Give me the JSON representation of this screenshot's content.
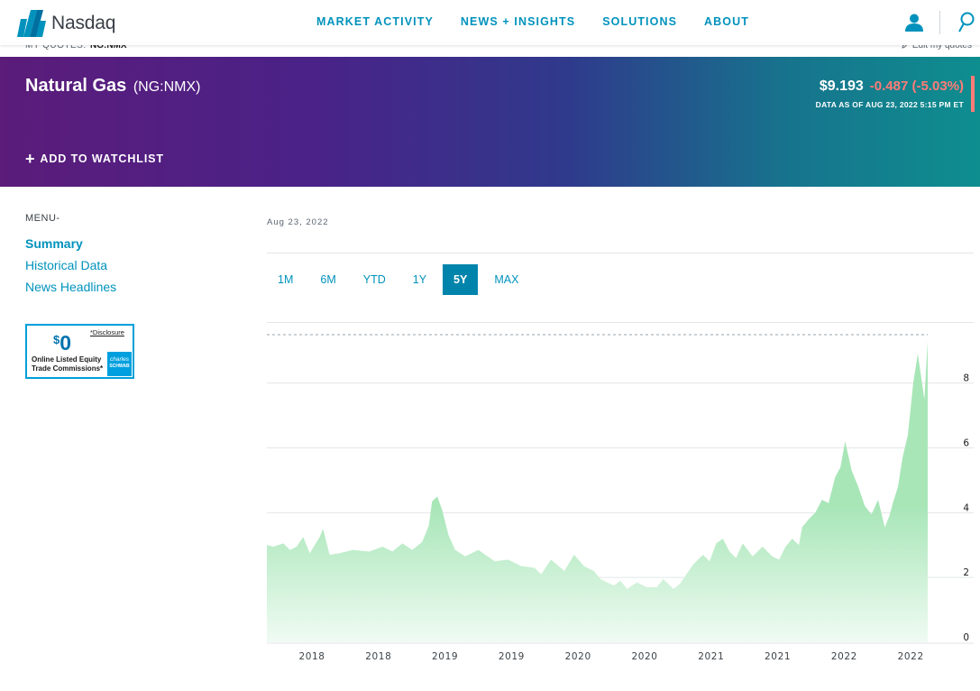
{
  "brand": {
    "name": "Nasdaq"
  },
  "nav": {
    "items": [
      "MARKET ACTIVITY",
      "NEWS + INSIGHTS",
      "SOLUTIONS",
      "ABOUT"
    ]
  },
  "quotes": {
    "label": "MY QUOTES:",
    "symbol": "NG:NMX",
    "edit_label": "Edit my quotes"
  },
  "header": {
    "title": "Natural Gas",
    "symbol": "(NG:NMX)",
    "price": "$9.193",
    "change": "-0.487 (-5.03%)",
    "as_of": "DATA AS OF AUG 23, 2022 5:15 PM ET",
    "watchlist_label": "ADD TO WATCHLIST"
  },
  "sidebar": {
    "menu_label": "MENU-",
    "items": [
      {
        "label": "Summary",
        "active": true
      },
      {
        "label": "Historical Data",
        "active": false
      },
      {
        "label": "News Headlines",
        "active": false
      }
    ]
  },
  "ad": {
    "amount": "0",
    "currency": "$",
    "disclosure": "*Disclosure",
    "line1": "Online Listed Equity",
    "line2": "Trade Commissions*",
    "brand_line1": "charles",
    "brand_line2": "SCHWAB"
  },
  "chart": {
    "date_label": "Aug 23, 2022",
    "ranges": [
      "1M",
      "6M",
      "YTD",
      "1Y",
      "5Y",
      "MAX"
    ],
    "active_range": "5Y"
  },
  "colors": {
    "accent": "#0092bc",
    "active_tab": "#0084ab",
    "negative_change": "#ff7b77",
    "area_fill": "#a8e6b8",
    "area_fill_fade": "#f0fbf3"
  },
  "chart_data": {
    "type": "area",
    "x_tick_labels": [
      "2018",
      "2018",
      "2019",
      "2019",
      "2020",
      "2020",
      "2021",
      "2021",
      "2022",
      "2022"
    ],
    "ylim": [
      0,
      9.8
    ],
    "y_ticks": [
      0,
      2,
      4,
      6,
      8
    ],
    "grid": true,
    "x": [
      0,
      0.01,
      0.025,
      0.035,
      0.045,
      0.055,
      0.065,
      0.08,
      0.085,
      0.095,
      0.11,
      0.13,
      0.155,
      0.175,
      0.19,
      0.205,
      0.22,
      0.235,
      0.245,
      0.25,
      0.258,
      0.265,
      0.275,
      0.285,
      0.3,
      0.32,
      0.345,
      0.365,
      0.385,
      0.405,
      0.415,
      0.43,
      0.45,
      0.465,
      0.48,
      0.495,
      0.505,
      0.515,
      0.525,
      0.535,
      0.545,
      0.56,
      0.575,
      0.59,
      0.6,
      0.615,
      0.625,
      0.645,
      0.66,
      0.67,
      0.68,
      0.69,
      0.7,
      0.71,
      0.72,
      0.735,
      0.75,
      0.765,
      0.775,
      0.785,
      0.795,
      0.805,
      0.81,
      0.82,
      0.83,
      0.84,
      0.85,
      0.86,
      0.868,
      0.875,
      0.885,
      0.895,
      0.905,
      0.915,
      0.925,
      0.935,
      0.942,
      0.948,
      0.955,
      0.962,
      0.97,
      0.978,
      0.985,
      0.99,
      0.995,
      1
    ],
    "values": [
      3.0,
      2.95,
      3.05,
      2.85,
      2.95,
      3.25,
      2.75,
      3.25,
      3.5,
      2.7,
      2.75,
      2.85,
      2.8,
      2.95,
      2.8,
      3.05,
      2.85,
      3.1,
      3.6,
      4.35,
      4.5,
      4.1,
      3.3,
      2.85,
      2.65,
      2.85,
      2.5,
      2.55,
      2.35,
      2.3,
      2.1,
      2.55,
      2.2,
      2.7,
      2.35,
      2.2,
      1.95,
      1.85,
      1.75,
      1.9,
      1.65,
      1.85,
      1.7,
      1.7,
      1.95,
      1.65,
      1.8,
      2.4,
      2.7,
      2.5,
      3.05,
      3.2,
      2.8,
      2.6,
      3.05,
      2.65,
      2.95,
      2.65,
      2.55,
      2.95,
      3.2,
      3.0,
      3.55,
      3.8,
      4.0,
      4.4,
      4.3,
      5.1,
      5.4,
      6.2,
      5.3,
      4.8,
      4.2,
      3.95,
      4.4,
      3.55,
      3.9,
      4.35,
      4.8,
      5.7,
      6.4,
      8.0,
      8.9,
      8.2,
      7.5,
      9.3
    ]
  }
}
